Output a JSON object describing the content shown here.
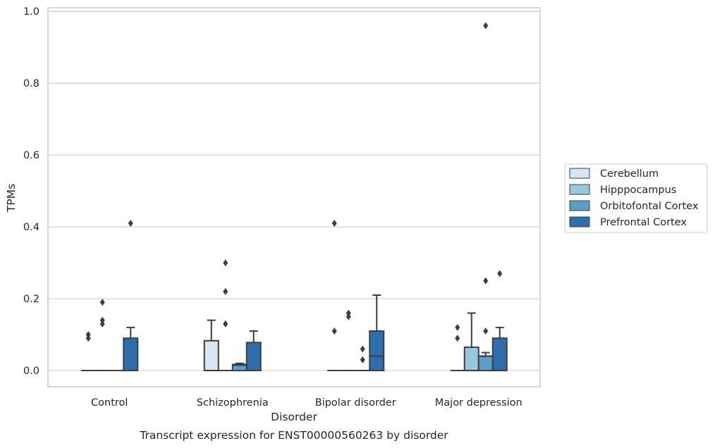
{
  "caption": "Transcript expression for ENST00000560263 by disorder",
  "chart_data": {
    "type": "box",
    "xlabel": "Disorder",
    "ylabel": "TPMs",
    "ylim": [
      -0.045,
      1.01
    ],
    "yticks": [
      0.0,
      0.2,
      0.4,
      0.6,
      0.8,
      1.0
    ],
    "ytick_labels": [
      "0.0",
      "0.2",
      "0.4",
      "0.6",
      "0.8",
      "1.0"
    ],
    "grid": "horizontal",
    "legend_position": "right",
    "categories": [
      "Control",
      "Schizophrenia",
      "Bipolar disorder",
      "Major depression"
    ],
    "series": [
      {
        "name": "Cerebellum",
        "color": "#d6e6f4",
        "boxes": [
          {
            "q1": 0,
            "median": 0,
            "q3": 0,
            "whisker_low": 0,
            "whisker_high": 0,
            "outliers": [
              0.09,
              0.1
            ]
          },
          {
            "q1": 0,
            "median": 0,
            "q3": 0.083,
            "whisker_low": 0,
            "whisker_high": 0.14,
            "outliers": []
          },
          {
            "q1": 0,
            "median": 0,
            "q3": 0,
            "whisker_low": 0,
            "whisker_high": 0,
            "outliers": [
              0.11,
              0.41
            ]
          },
          {
            "q1": 0,
            "median": 0,
            "q3": 0,
            "whisker_low": 0,
            "whisker_high": 0,
            "outliers": [
              0.09,
              0.12
            ]
          }
        ]
      },
      {
        "name": "Hipppocampus",
        "color": "#9ac6e0",
        "boxes": [
          {
            "q1": 0,
            "median": 0,
            "q3": 0,
            "whisker_low": 0,
            "whisker_high": 0,
            "outliers": [
              0.13,
              0.14,
              0.19
            ]
          },
          {
            "q1": 0,
            "median": 0,
            "q3": 0,
            "whisker_low": 0,
            "whisker_high": 0,
            "outliers": [
              0.13,
              0.22,
              0.3
            ]
          },
          {
            "q1": 0,
            "median": 0,
            "q3": 0,
            "whisker_low": 0,
            "whisker_high": 0,
            "outliers": [
              0.15,
              0.16
            ]
          },
          {
            "q1": 0,
            "median": 0,
            "q3": 0.065,
            "whisker_low": 0,
            "whisker_high": 0.16,
            "outliers": []
          }
        ]
      },
      {
        "name": "Orbitofontal Cortex",
        "color": "#5b9ec9",
        "boxes": [
          {
            "q1": 0,
            "median": 0,
            "q3": 0,
            "whisker_low": 0,
            "whisker_high": 0,
            "outliers": []
          },
          {
            "q1": 0,
            "median": 0.015,
            "q3": 0.017,
            "whisker_low": 0,
            "whisker_high": 0.02,
            "outliers": []
          },
          {
            "q1": 0,
            "median": 0,
            "q3": 0,
            "whisker_low": 0,
            "whisker_high": 0,
            "outliers": [
              0.03,
              0.06
            ]
          },
          {
            "q1": 0,
            "median": 0.04,
            "q3": 0.04,
            "whisker_low": 0,
            "whisker_high": 0.05,
            "outliers": [
              0.11,
              0.25,
              0.96
            ]
          }
        ]
      },
      {
        "name": "Prefrontal Cortex",
        "color": "#2d6fae",
        "boxes": [
          {
            "q1": 0,
            "median": 0,
            "q3": 0.09,
            "whisker_low": 0,
            "whisker_high": 0.12,
            "outliers": [
              0.41
            ]
          },
          {
            "q1": 0,
            "median": 0,
            "q3": 0.078,
            "whisker_low": 0,
            "whisker_high": 0.11,
            "outliers": []
          },
          {
            "q1": 0,
            "median": 0.04,
            "q3": 0.11,
            "whisker_low": 0,
            "whisker_high": 0.21,
            "outliers": []
          },
          {
            "q1": 0,
            "median": 0,
            "q3": 0.09,
            "whisker_low": 0,
            "whisker_high": 0.12,
            "outliers": [
              0.27
            ]
          }
        ]
      }
    ]
  }
}
